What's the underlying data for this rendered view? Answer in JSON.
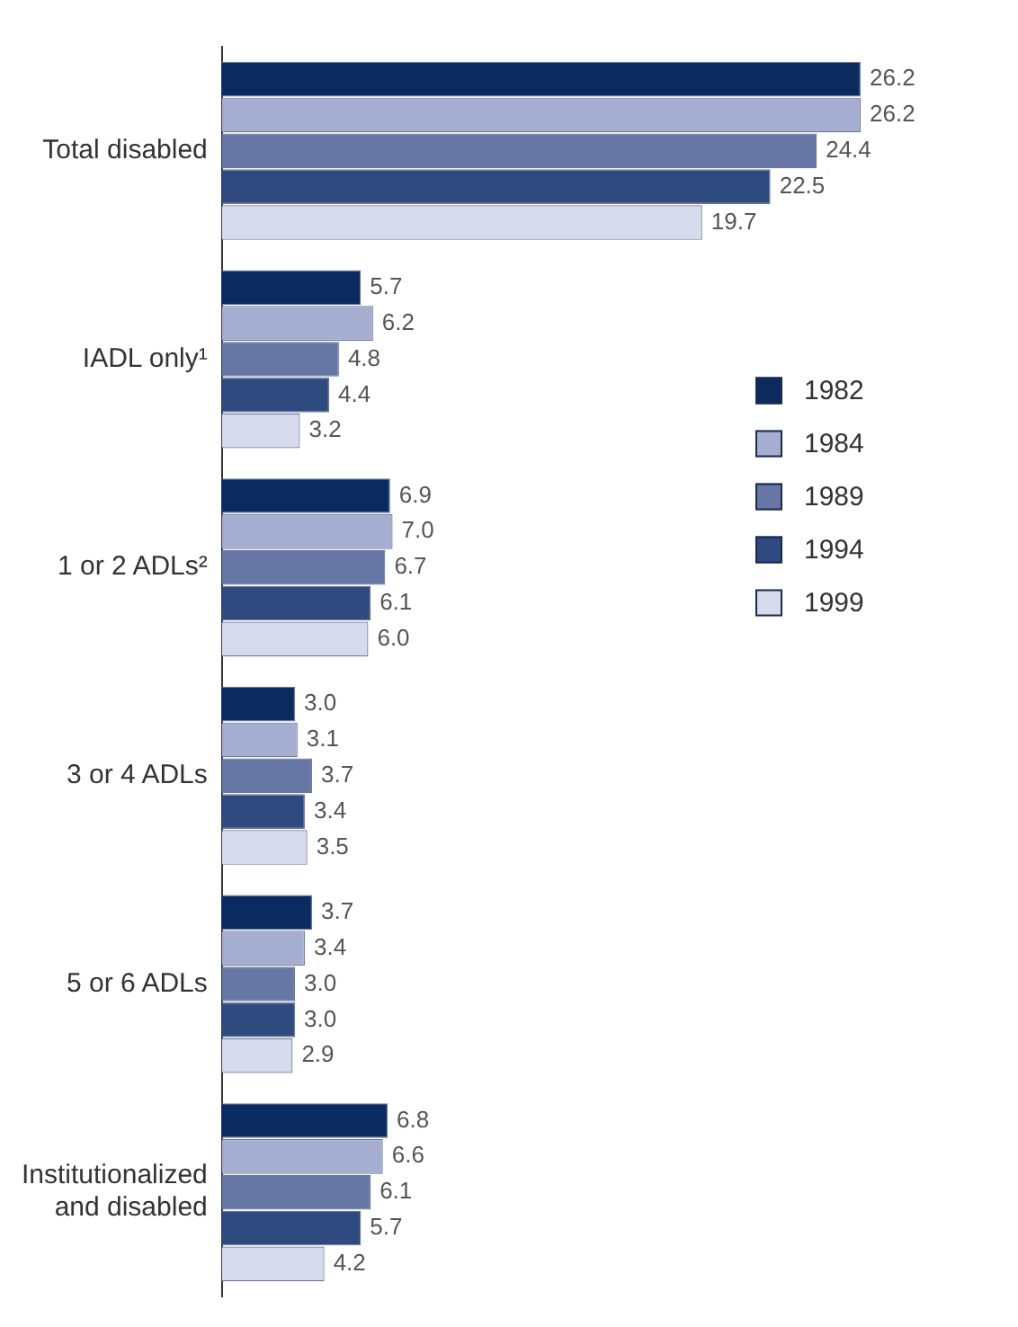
{
  "chart_data": {
    "type": "bar",
    "orientation": "horizontal",
    "categories": [
      "Total disabled",
      "IADL only¹",
      "1 or 2 ADLs²",
      "3 or 4 ADLs",
      "5 or 6 ADLs",
      "Institutionalized and disabled"
    ],
    "series": [
      {
        "name": "1982",
        "color": "#0b2a5f",
        "values": [
          26.2,
          5.7,
          6.9,
          3.0,
          3.7,
          6.8
        ],
        "value_labels": [
          "26.2",
          "5.7",
          "6.9",
          "3.0",
          "3.7",
          "6.8"
        ]
      },
      {
        "name": "1984",
        "color": "#a5aed0",
        "values": [
          26.2,
          6.2,
          7.0,
          3.1,
          3.4,
          6.6
        ],
        "value_labels": [
          "26.2",
          "6.2",
          "7.0",
          "3.1",
          "3.4",
          "6.6"
        ]
      },
      {
        "name": "1989",
        "color": "#6777a5",
        "values": [
          24.4,
          4.8,
          6.7,
          3.7,
          3.0,
          6.1
        ],
        "value_labels": [
          "24.4",
          "4.8",
          "6.7",
          "3.7",
          "3.0",
          "6.1"
        ]
      },
      {
        "name": "1994",
        "color": "#2f4a7e",
        "values": [
          22.5,
          4.4,
          6.1,
          3.4,
          3.0,
          5.7
        ],
        "value_labels": [
          "22.5",
          "4.4",
          "6.1",
          "3.4",
          "3.0",
          "5.7"
        ]
      },
      {
        "name": "1999",
        "color": "#d6dbeb",
        "values": [
          19.7,
          3.2,
          6.0,
          3.5,
          2.9,
          4.2
        ],
        "value_labels": [
          "19.7",
          "3.2",
          "6.0",
          "3.5",
          "2.9",
          "4.2"
        ]
      }
    ],
    "legend": "right"
  }
}
